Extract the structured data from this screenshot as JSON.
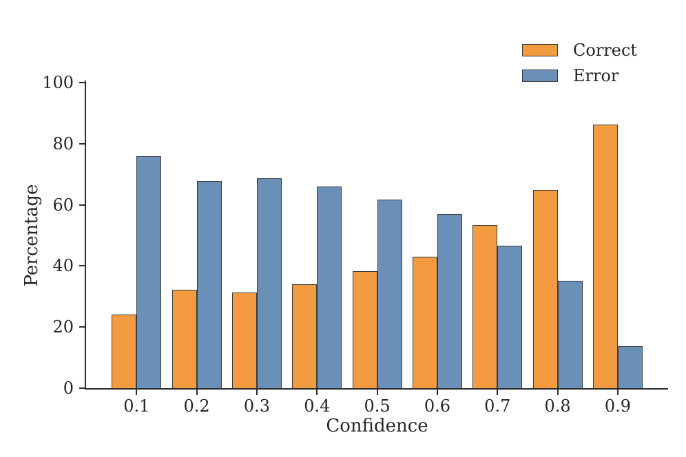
{
  "figure": {
    "background_color": "#ffffff",
    "text_color": "#262626",
    "spine_color": "#2b2b2b"
  },
  "chart_data": {
    "type": "bar",
    "title": "",
    "xlabel": "Confidence",
    "ylabel": "Percentage",
    "categories": [
      "0.1",
      "0.2",
      "0.3",
      "0.4",
      "0.5",
      "0.6",
      "0.7",
      "0.8",
      "0.9"
    ],
    "series": [
      {
        "name": "Correct",
        "color": "#F29B41",
        "values": [
          24.0,
          32.1,
          31.3,
          34.1,
          38.3,
          43.0,
          53.3,
          64.8,
          86.2
        ]
      },
      {
        "name": "Error",
        "color": "#6B90B7",
        "values": [
          76.0,
          67.9,
          68.7,
          65.9,
          61.7,
          57.0,
          46.7,
          35.2,
          13.8
        ]
      }
    ],
    "ylim": [
      0,
      100
    ],
    "yticks": [
      0,
      20,
      40,
      60,
      80,
      100
    ],
    "bar_edge_color": "#3a3a3a",
    "grid": false,
    "legend": {
      "position": "upper-right",
      "entries": [
        "Correct",
        "Error"
      ]
    }
  }
}
